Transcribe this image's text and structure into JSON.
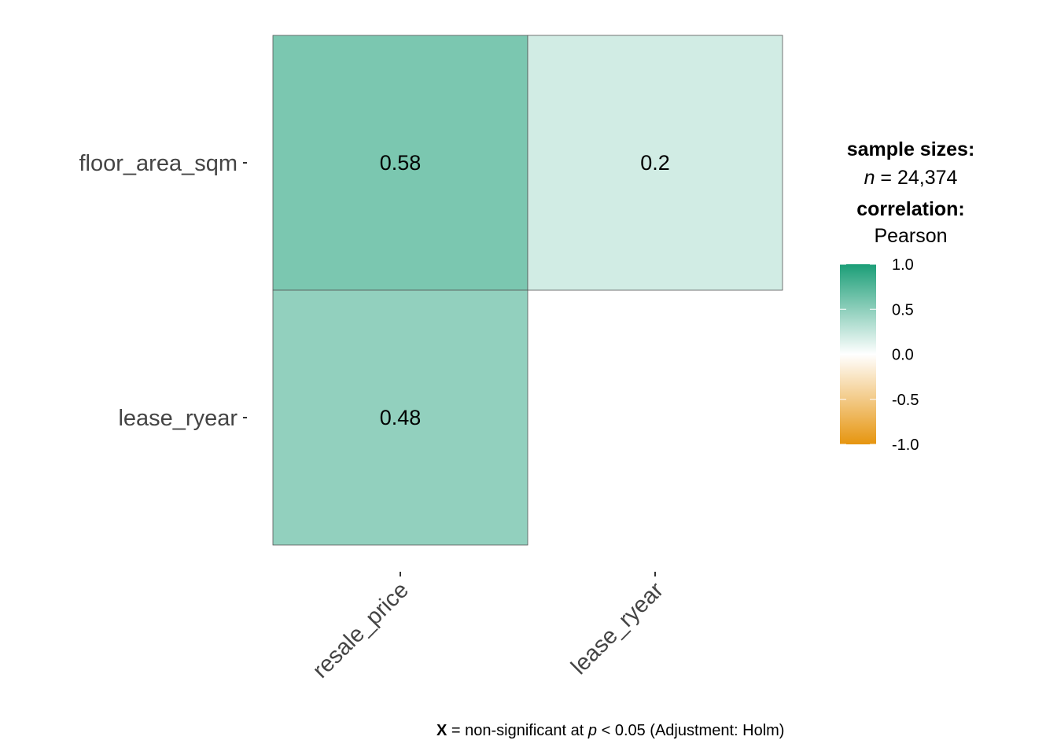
{
  "chart_data": {
    "type": "heatmap",
    "title": "",
    "x_categories": [
      "resale_price",
      "lease_ryear"
    ],
    "y_categories": [
      "floor_area_sqm",
      "lease_ryear"
    ],
    "cells": [
      {
        "x": "resale_price",
        "y": "floor_area_sqm",
        "value": 0.58,
        "label": "0.58"
      },
      {
        "x": "lease_ryear",
        "y": "floor_area_sqm",
        "value": 0.2,
        "label": "0.2"
      },
      {
        "x": "resale_price",
        "y": "lease_ryear",
        "value": 0.48,
        "label": "0.48"
      }
    ],
    "legend": {
      "sample_title": "sample sizes:",
      "n_label": "n",
      "n_value": "= 24,374",
      "corr_title": "correlation:",
      "corr_method": "Pearson",
      "range": [
        -1,
        1
      ],
      "ticks": [
        "1.0",
        "0.5",
        "0.0",
        "-0.5",
        "-1.0"
      ],
      "tick_values": [
        1,
        0.5,
        0,
        -0.5,
        -1
      ],
      "colors": {
        "high": "#1B9E77",
        "mid": "#FFFFFF",
        "low": "#E6950F"
      },
      "placement": "right"
    },
    "caption": {
      "x_mark": "X",
      "text1": " = non-significant at ",
      "p": "p",
      "text2": " < 0.05 (Adjustment: Holm)"
    }
  }
}
